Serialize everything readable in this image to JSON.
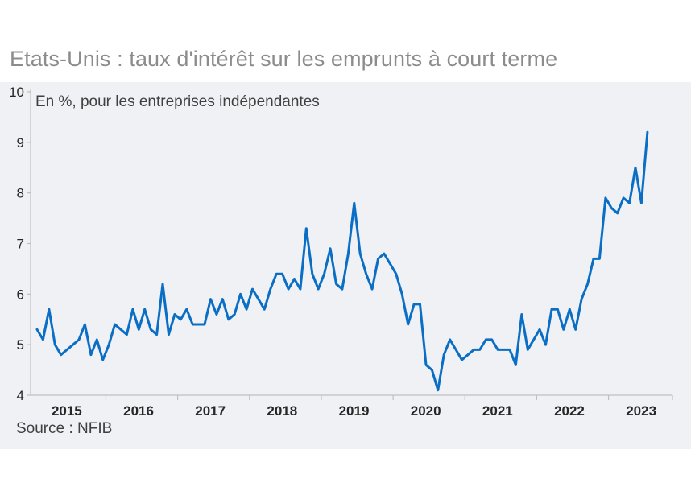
{
  "title": "Etats-Unis : taux d'intérêt sur les emprunts à court terme",
  "subtitle": "En %, pour les entreprises indépendantes",
  "source": "Source : NFIB",
  "colors": {
    "line": "#0a6fc4",
    "background": "#f0f1f5",
    "title": "#8c8c8c",
    "axis": "#bfbfbf"
  },
  "chart_data": {
    "type": "line",
    "title": "Etats-Unis : taux d'intérêt sur les emprunts à court terme",
    "subtitle": "En %, pour les entreprises indépendantes",
    "xlabel": "",
    "ylabel": "",
    "ylim": [
      4,
      10
    ],
    "yticks": [
      "4",
      "5",
      "6",
      "7",
      "8",
      "9",
      "10"
    ],
    "xticks": [
      "2015",
      "2016",
      "2017",
      "2018",
      "2019",
      "2020",
      "2021",
      "2022",
      "2023"
    ],
    "x_start": "2015-01",
    "frequency": "monthly",
    "grid": false,
    "series": [
      {
        "values": [
          5.3,
          5.1,
          5.7,
          5.0,
          4.8,
          4.9,
          5.0,
          5.1,
          5.4,
          4.8,
          5.1,
          4.7,
          5.0,
          5.4,
          5.3,
          5.2,
          5.7,
          5.3,
          5.7,
          5.3,
          5.2,
          6.2,
          5.2,
          5.6,
          5.5,
          5.7,
          5.4,
          5.4,
          5.4,
          5.9,
          5.6,
          5.9,
          5.5,
          5.6,
          6.0,
          5.7,
          6.1,
          5.9,
          5.7,
          6.1,
          6.4,
          6.4,
          6.1,
          6.3,
          6.1,
          7.3,
          6.4,
          6.1,
          6.4,
          6.9,
          6.2,
          6.1,
          6.8,
          7.8,
          6.8,
          6.4,
          6.1,
          6.7,
          6.8,
          6.6,
          6.4,
          6.0,
          5.4,
          5.8,
          5.8,
          4.6,
          4.5,
          4.1,
          4.8,
          5.1,
          4.9,
          4.7,
          4.8,
          4.9,
          4.9,
          5.1,
          5.1,
          4.9,
          4.9,
          4.9,
          4.6,
          5.6,
          4.9,
          5.1,
          5.3,
          5.0,
          5.7,
          5.7,
          5.3,
          5.7,
          5.3,
          5.9,
          6.2,
          6.7,
          6.7,
          7.9,
          7.7,
          7.6,
          7.9,
          7.8,
          8.5,
          7.8,
          9.2
        ]
      }
    ]
  }
}
